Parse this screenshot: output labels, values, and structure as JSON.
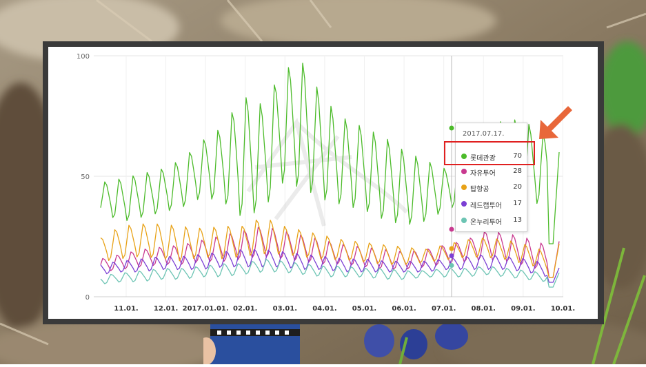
{
  "chart_data": {
    "type": "line",
    "title": "",
    "xlabel": "",
    "ylabel": "",
    "ylim": [
      0,
      100
    ],
    "yticks": [
      0,
      50,
      100
    ],
    "x_ticks": [
      "11.01.",
      "12.01.",
      "2017.01.01.",
      "02.01.",
      "03.01.",
      "04.01.",
      "05.01.",
      "06.01.",
      "07.01.",
      "08.01.",
      "09.01.",
      "10.01."
    ],
    "grid": true,
    "legend": "tooltip",
    "series": [
      {
        "name": "롯데관광",
        "color": "#4cbb2a",
        "envelope_low": [
          35,
          30,
          32,
          34,
          36,
          40,
          38,
          30,
          34,
          45,
          42,
          38,
          36,
          34,
          30,
          28,
          30,
          35,
          38,
          40,
          42,
          36,
          38
        ],
        "envelope_high": [
          48,
          50,
          52,
          54,
          58,
          66,
          72,
          86,
          82,
          97,
          100,
          84,
          76,
          72,
          68,
          62,
          58,
          54,
          62,
          70,
          76,
          74,
          68
        ],
        "endpoint_low": 22,
        "endpoint_high": 60
      },
      {
        "name": "자유투어",
        "color": "#c8388f",
        "envelope_low": [
          10,
          11,
          12,
          13,
          13,
          14,
          14,
          15,
          16,
          15,
          14,
          13,
          13,
          12,
          11,
          11,
          12,
          13,
          14,
          15,
          14,
          12,
          10
        ],
        "envelope_high": [
          16,
          18,
          20,
          21,
          22,
          24,
          26,
          28,
          30,
          28,
          26,
          24,
          22,
          21,
          20,
          19,
          20,
          22,
          24,
          28,
          27,
          25,
          22
        ],
        "endpoint_low": 8,
        "endpoint_high": 23
      },
      {
        "name": "탑항공",
        "color": "#e8a217",
        "envelope_low": [
          14,
          15,
          16,
          15,
          14,
          16,
          15,
          16,
          17,
          17,
          16,
          15,
          15,
          14,
          13,
          13,
          14,
          15,
          16,
          16,
          15,
          13,
          11
        ],
        "envelope_high": [
          25,
          30,
          31,
          31,
          30,
          29,
          30,
          30,
          34,
          30,
          28,
          26,
          24,
          23,
          22,
          21,
          20,
          22,
          24,
          25,
          24,
          22,
          19
        ],
        "endpoint_low": 8,
        "endpoint_high": 22
      },
      {
        "name": "레드캡투어",
        "color": "#7b3fd4",
        "envelope_low": [
          9,
          10,
          10,
          11,
          11,
          11,
          12,
          12,
          12,
          12,
          11,
          11,
          10,
          10,
          10,
          10,
          10,
          11,
          11,
          11,
          11,
          10,
          8
        ],
        "envelope_high": [
          14,
          15,
          16,
          17,
          17,
          18,
          19,
          20,
          20,
          19,
          18,
          17,
          16,
          16,
          15,
          15,
          15,
          16,
          17,
          18,
          17,
          16,
          14
        ],
        "endpoint_low": 6,
        "endpoint_high": 12
      },
      {
        "name": "온누리투어",
        "color": "#6cc4b3",
        "envelope_low": [
          5,
          6,
          6,
          7,
          7,
          8,
          8,
          9,
          10,
          10,
          9,
          8,
          8,
          8,
          7,
          7,
          8,
          8,
          8,
          9,
          8,
          7,
          6
        ],
        "envelope_high": [
          9,
          10,
          11,
          12,
          12,
          13,
          14,
          14,
          16,
          15,
          14,
          13,
          13,
          12,
          12,
          11,
          11,
          12,
          12,
          13,
          12,
          11,
          10
        ],
        "endpoint_low": 4,
        "endpoint_high": 10
      }
    ],
    "tooltip": {
      "date": "2017.07.17.",
      "entries": [
        {
          "name": "롯데관광",
          "value": "70",
          "color": "#4cbb2a"
        },
        {
          "name": "자유투어",
          "value": "28",
          "color": "#c8388f"
        },
        {
          "name": "탑항공",
          "value": "20",
          "color": "#e8a217"
        },
        {
          "name": "레드캡투어",
          "value": "17",
          "color": "#7b3fd4"
        },
        {
          "name": "온누리투어",
          "value": "13",
          "color": "#6cc4b3"
        }
      ],
      "highlighted_entry": "롯데관광"
    },
    "annotation_color": "#e02020",
    "arrow_color": "#e8673a"
  }
}
